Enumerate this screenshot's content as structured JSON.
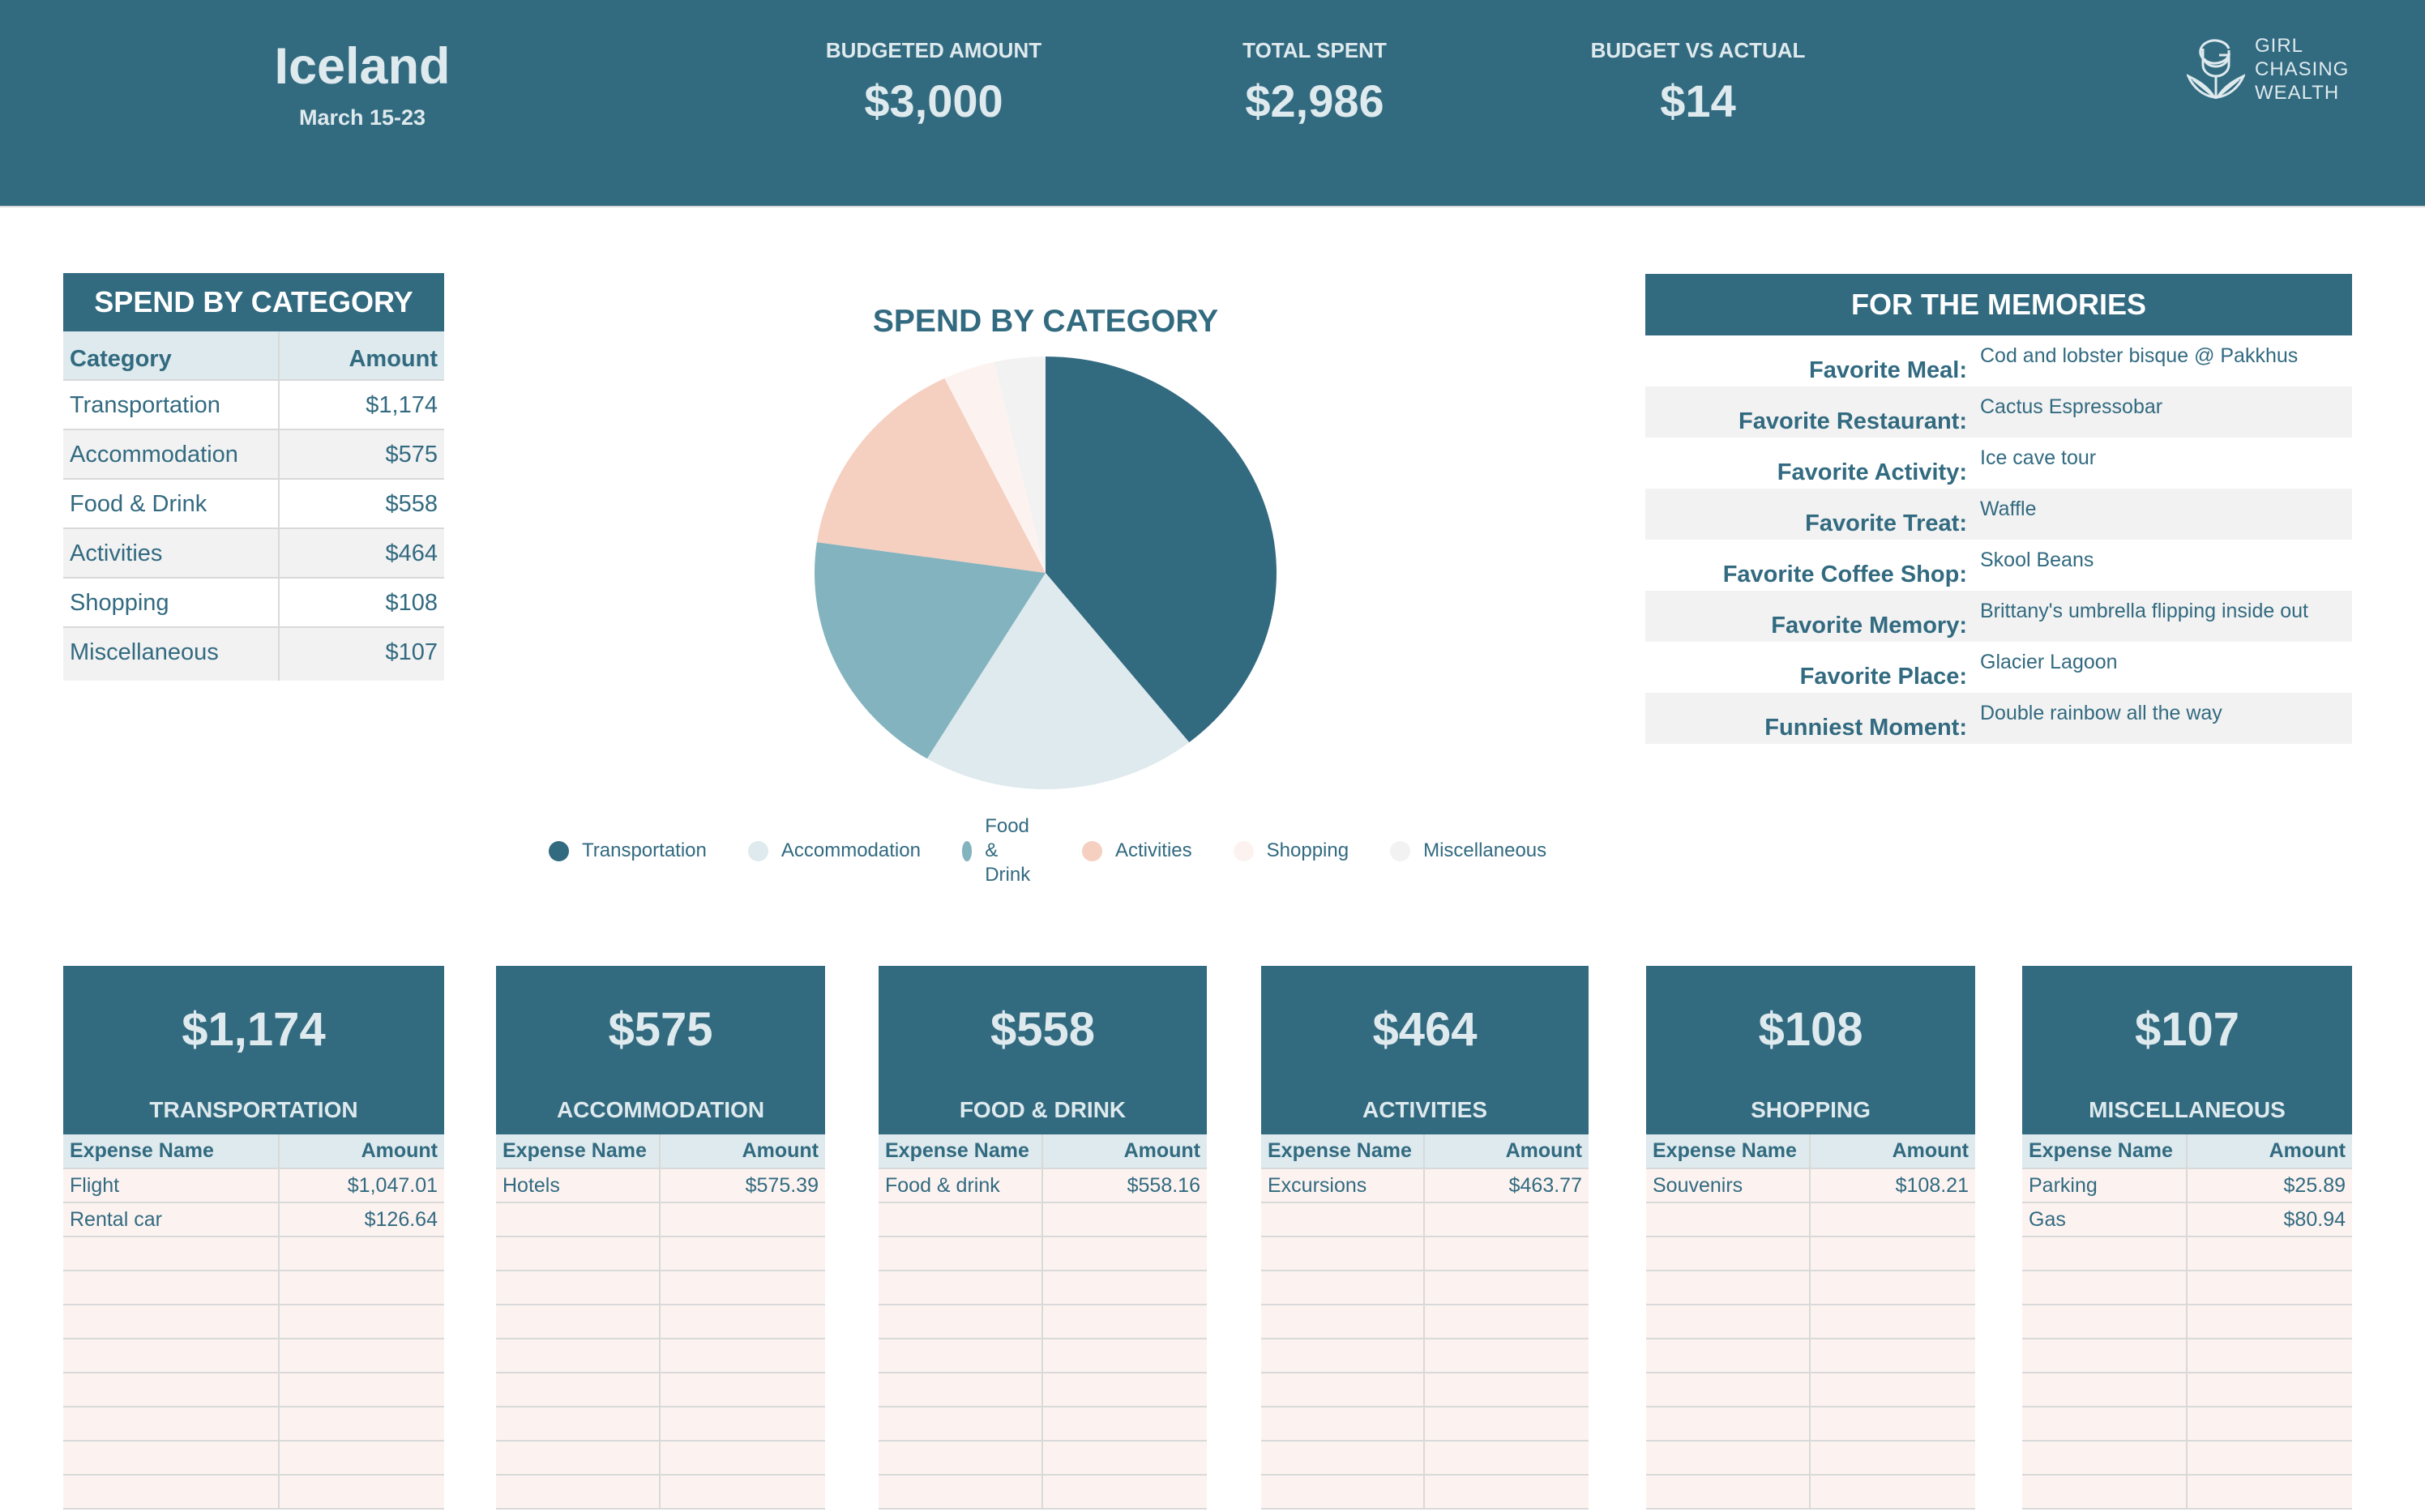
{
  "header": {
    "trip_name": "Iceland",
    "trip_dates": "March 15-23",
    "stats": [
      {
        "label": "BUDGETED AMOUNT",
        "value": "$3,000"
      },
      {
        "label": "TOTAL SPENT",
        "value": "$2,986"
      },
      {
        "label": "BUDGET VS ACTUAL",
        "value": "$14"
      }
    ],
    "logo": {
      "icon": "rose-coin-icon",
      "lines": [
        "GIRL",
        "CHASING",
        "WEALTH"
      ]
    }
  },
  "spend_table": {
    "title": "SPEND BY CATEGORY",
    "columns": [
      "Category",
      "Amount"
    ],
    "rows": [
      {
        "category": "Transportation",
        "amount": "$1,174"
      },
      {
        "category": "Accommodation",
        "amount": "$575"
      },
      {
        "category": "Food & Drink",
        "amount": "$558"
      },
      {
        "category": "Activities",
        "amount": "$464"
      },
      {
        "category": "Shopping",
        "amount": "$108"
      },
      {
        "category": "Miscellaneous",
        "amount": "$107"
      }
    ]
  },
  "chart_data": {
    "type": "pie",
    "title": "SPEND BY CATEGORY",
    "categories": [
      "Transportation",
      "Accommodation",
      "Food & Drink",
      "Activities",
      "Shopping",
      "Miscellaneous"
    ],
    "values": [
      1174,
      575,
      558,
      464,
      108,
      107
    ],
    "colors": [
      "#326a80",
      "#deeaed",
      "#82b3be",
      "#f5cfc0",
      "#fcf3f0",
      "#f2f2f2"
    ],
    "start_angle": "12 o'clock, clockwise",
    "legend_position": "bottom"
  },
  "memories": {
    "title": "FOR THE MEMORIES",
    "items": [
      {
        "label": "Favorite Meal:",
        "value": "Cod and lobster bisque @ Pakkhus"
      },
      {
        "label": "Favorite Restaurant:",
        "value": "Cactus Espressobar"
      },
      {
        "label": "Favorite Activity:",
        "value": "Ice cave tour"
      },
      {
        "label": "Favorite Treat:",
        "value": "Waffle"
      },
      {
        "label": "Favorite Coffee Shop:",
        "value": "Skool Beans"
      },
      {
        "label": "Favorite Memory:",
        "value": "Brittany's umbrella flipping inside out"
      },
      {
        "label": "Favorite Place:",
        "value": "Glacier Lagoon"
      },
      {
        "label": "Funniest Moment:",
        "value": "Double rainbow all the way"
      }
    ]
  },
  "expense_cards": {
    "columns": [
      "Expense Name",
      "Amount"
    ],
    "cards": [
      {
        "total": "$1,174",
        "name": "TRANSPORTATION",
        "expenses": [
          {
            "name": "Flight",
            "amount": "$1,047.01"
          },
          {
            "name": "Rental car",
            "amount": "$126.64"
          }
        ]
      },
      {
        "total": "$575",
        "name": "ACCOMMODATION",
        "expenses": [
          {
            "name": "Hotels",
            "amount": "$575.39"
          }
        ]
      },
      {
        "total": "$558",
        "name": "FOOD & DRINK",
        "expenses": [
          {
            "name": "Food & drink",
            "amount": "$558.16"
          }
        ]
      },
      {
        "total": "$464",
        "name": "ACTIVITIES",
        "expenses": [
          {
            "name": "Excursions",
            "amount": "$463.77"
          }
        ]
      },
      {
        "total": "$108",
        "name": "SHOPPING",
        "expenses": [
          {
            "name": "Souvenirs",
            "amount": "$108.21"
          }
        ]
      },
      {
        "total": "$107",
        "name": "MISCELLANEOUS",
        "expenses": [
          {
            "name": "Parking",
            "amount": "$25.89"
          },
          {
            "name": "Gas",
            "amount": "$80.94"
          }
        ]
      }
    ]
  },
  "colors": {
    "primary": "#326a80",
    "light_blue": "#deeaed",
    "row_alt": "#f2f2f2",
    "expense_row": "#fcf3f0",
    "border": "#d9d9d9"
  }
}
